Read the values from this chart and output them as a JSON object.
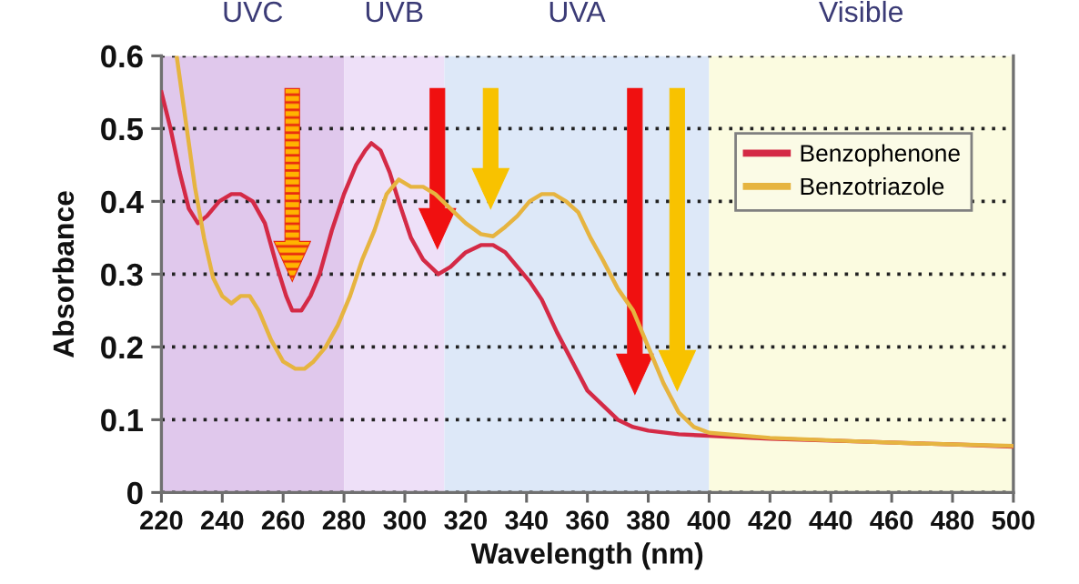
{
  "chart_data": {
    "type": "line",
    "xlabel": "Wavelength (nm)",
    "ylabel": "Absorbance",
    "xlim": [
      220,
      500
    ],
    "xticks": [
      220,
      240,
      260,
      280,
      300,
      320,
      340,
      360,
      380,
      400,
      420,
      440,
      460,
      480,
      500
    ],
    "ylim": [
      0,
      0.6
    ],
    "yticks": [
      0,
      0.1,
      0.2,
      0.3,
      0.4,
      0.5,
      0.6
    ],
    "grid": "y",
    "legend": "top right",
    "bands": [
      {
        "axis": "x",
        "from": 220,
        "to": 280,
        "label": "UVC",
        "color": "#e0c8ec"
      },
      {
        "axis": "x",
        "from": 280,
        "to": 313,
        "label": "UVB",
        "color": "#eee0f8"
      },
      {
        "axis": "x",
        "from": 313,
        "to": 400,
        "label": "UVA",
        "color": "#dde8f8"
      },
      {
        "axis": "x",
        "from": 400,
        "to": 500,
        "label": "Visible",
        "color": "#fbfbe0"
      }
    ],
    "series": [
      {
        "name": "Benzophenone",
        "color": "#d42a46",
        "x": [
          220,
          223,
          226,
          229,
          232,
          235,
          239,
          243,
          246,
          250,
          254,
          258,
          261,
          263,
          266,
          269,
          272,
          276,
          280,
          284,
          287,
          289,
          292,
          295,
          298,
          302,
          306,
          311,
          315,
          320,
          325,
          329,
          333,
          337,
          341,
          345,
          350,
          355,
          360,
          365,
          370,
          375,
          380,
          390,
          400,
          420,
          450,
          480,
          500
        ],
        "values": [
          0.55,
          0.5,
          0.44,
          0.39,
          0.37,
          0.38,
          0.4,
          0.41,
          0.41,
          0.4,
          0.37,
          0.31,
          0.27,
          0.25,
          0.25,
          0.27,
          0.3,
          0.36,
          0.41,
          0.45,
          0.47,
          0.48,
          0.47,
          0.44,
          0.4,
          0.35,
          0.32,
          0.3,
          0.31,
          0.33,
          0.34,
          0.34,
          0.33,
          0.31,
          0.29,
          0.265,
          0.22,
          0.18,
          0.14,
          0.12,
          0.1,
          0.09,
          0.085,
          0.08,
          0.078,
          0.074,
          0.07,
          0.066,
          0.063
        ]
      },
      {
        "name": "Benzotriazole",
        "color": "#e6b440",
        "x": [
          225,
          228,
          231,
          234,
          237,
          240,
          243,
          246,
          249,
          252,
          256,
          260,
          264,
          267,
          270,
          274,
          278,
          282,
          286,
          290,
          294,
          298,
          302,
          306,
          310,
          315,
          320,
          325,
          329,
          333,
          337,
          341,
          345,
          349,
          353,
          357,
          361,
          365,
          370,
          375,
          380,
          385,
          390,
          395,
          400,
          420,
          450,
          480,
          500
        ],
        "values": [
          0.6,
          0.51,
          0.42,
          0.35,
          0.295,
          0.27,
          0.26,
          0.27,
          0.27,
          0.25,
          0.21,
          0.18,
          0.17,
          0.17,
          0.18,
          0.2,
          0.23,
          0.27,
          0.32,
          0.36,
          0.41,
          0.43,
          0.42,
          0.42,
          0.41,
          0.39,
          0.37,
          0.355,
          0.352,
          0.365,
          0.38,
          0.4,
          0.41,
          0.41,
          0.4,
          0.385,
          0.35,
          0.32,
          0.28,
          0.25,
          0.2,
          0.15,
          0.11,
          0.09,
          0.082,
          0.075,
          0.07,
          0.066,
          0.064
        ]
      }
    ]
  }
}
